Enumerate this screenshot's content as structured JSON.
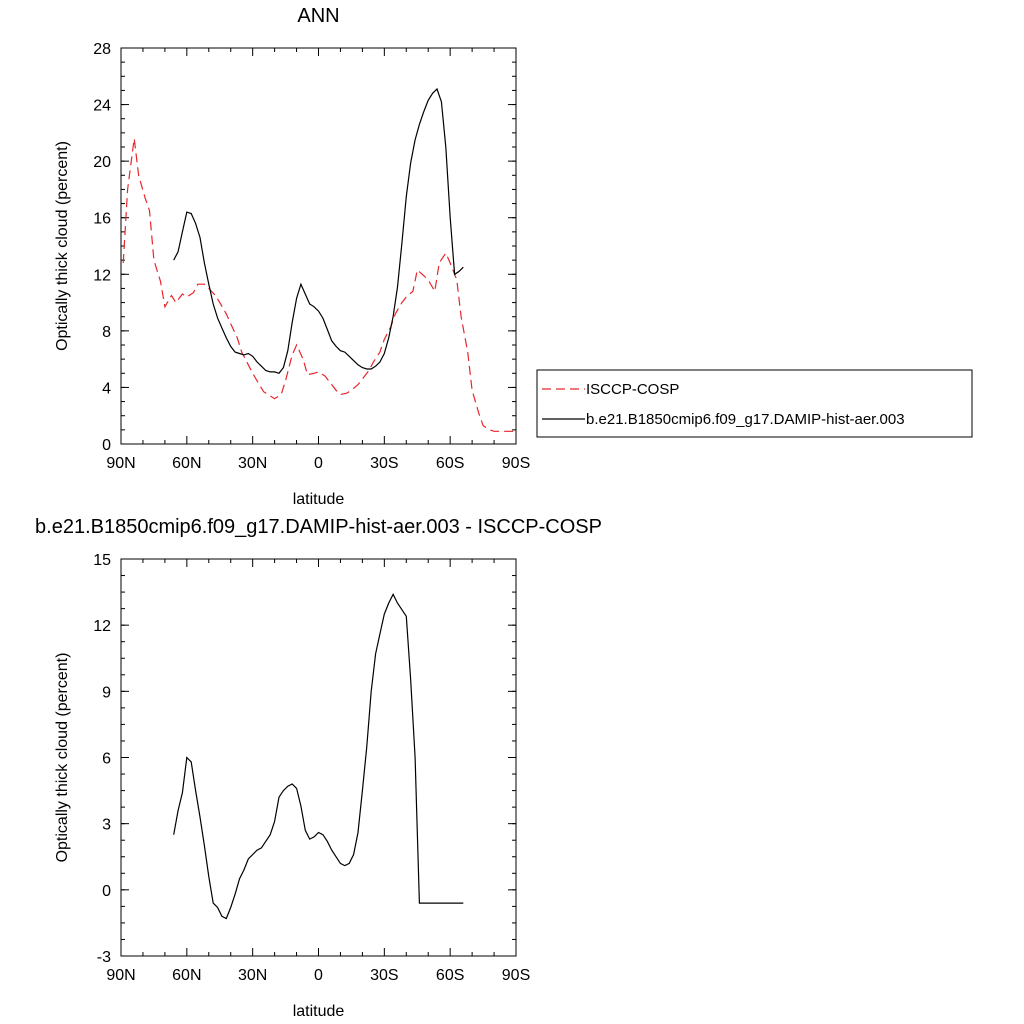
{
  "chart_data": [
    {
      "type": "line",
      "title": "ANN",
      "xlabel": "latitude",
      "ylabel": "Optically thick cloud (percent)",
      "xlim": [
        90,
        -90
      ],
      "ylim": [
        0,
        28
      ],
      "xticks": [
        90,
        60,
        30,
        0,
        -30,
        -60,
        -90
      ],
      "xtick_labels": [
        "90N",
        "60N",
        "30N",
        "0",
        "30S",
        "60S",
        "90S"
      ],
      "yticks": [
        0,
        4,
        8,
        12,
        16,
        20,
        24,
        28
      ],
      "ytick_labels": [
        "0",
        "4",
        "8",
        "12",
        "16",
        "20",
        "24",
        "28"
      ],
      "grid": false,
      "legend": "outside-right",
      "series": [
        {
          "name": "ISCCP-COSP",
          "color": "#e8262b",
          "dash": "dashed",
          "x": [
            89,
            87,
            84,
            82,
            79,
            77,
            75,
            72,
            70,
            67,
            65,
            62,
            60,
            57,
            55,
            52,
            50,
            47,
            45,
            42,
            40,
            37,
            35,
            32,
            30,
            27,
            25,
            22,
            20,
            17,
            15,
            12,
            10,
            7,
            5,
            2,
            0,
            -3,
            -5,
            -8,
            -10,
            -13,
            -15,
            -18,
            -20,
            -23,
            -25,
            -28,
            -30,
            -33,
            -35,
            -38,
            -40,
            -43,
            -45,
            -48,
            -50,
            -53,
            -55,
            -58,
            -60,
            -63,
            -65,
            -68,
            -70,
            -73,
            -75,
            -78,
            -80,
            -83,
            -85,
            -88,
            -89
          ],
          "y": [
            12.8,
            18.0,
            21.6,
            19.0,
            17.4,
            16.5,
            13.0,
            11.5,
            9.7,
            10.5,
            10.0,
            10.6,
            10.4,
            10.7,
            11.3,
            11.3,
            11.0,
            10.5,
            10.0,
            9.2,
            8.5,
            7.5,
            6.5,
            5.6,
            5.0,
            4.2,
            3.7,
            3.4,
            3.2,
            3.5,
            4.5,
            6.3,
            7.0,
            6.0,
            4.9,
            5.0,
            5.1,
            4.8,
            4.4,
            3.8,
            3.5,
            3.6,
            3.8,
            4.2,
            4.6,
            5.2,
            5.8,
            6.5,
            7.4,
            8.3,
            9.2,
            10.0,
            10.4,
            10.8,
            12.3,
            11.9,
            11.6,
            10.8,
            12.8,
            13.5,
            12.8,
            11.6,
            9.0,
            6.5,
            3.8,
            2.2,
            1.3,
            1.0,
            0.9,
            0.9,
            0.9,
            0.9,
            0.9
          ]
        },
        {
          "name": "b.e21.B1850cmip6.f09_g17.DAMIP-hist-aer.003",
          "color": "#000000",
          "dash": "solid",
          "x": [
            66,
            64,
            62,
            60,
            58,
            56,
            54,
            52,
            50,
            48,
            46,
            44,
            42,
            40,
            38,
            36,
            34,
            32,
            30,
            28,
            26,
            24,
            22,
            20,
            18,
            16,
            14,
            12,
            10,
            8,
            6,
            4,
            2,
            0,
            -2,
            -4,
            -6,
            -8,
            -10,
            -12,
            -14,
            -16,
            -18,
            -20,
            -22,
            -24,
            -26,
            -28,
            -30,
            -32,
            -34,
            -36,
            -38,
            -40,
            -42,
            -44,
            -46,
            -48,
            -50,
            -52,
            -54,
            -56,
            -58,
            -60,
            -62,
            -64,
            -66
          ],
          "y": [
            13.0,
            13.6,
            15.0,
            16.4,
            16.3,
            15.6,
            14.6,
            12.8,
            11.3,
            9.9,
            8.9,
            8.2,
            7.5,
            6.9,
            6.5,
            6.4,
            6.3,
            6.4,
            6.2,
            5.8,
            5.5,
            5.2,
            5.1,
            5.1,
            5.0,
            5.4,
            6.6,
            8.6,
            10.3,
            11.3,
            10.6,
            9.9,
            9.7,
            9.4,
            8.9,
            8.1,
            7.3,
            6.9,
            6.6,
            6.5,
            6.2,
            5.9,
            5.6,
            5.4,
            5.3,
            5.3,
            5.5,
            5.8,
            6.4,
            7.5,
            9.0,
            11.1,
            14.2,
            17.5,
            19.9,
            21.5,
            22.6,
            23.5,
            24.3,
            24.8,
            25.1,
            24.2,
            21.0,
            16.0,
            12.0,
            12.2,
            12.5
          ]
        }
      ]
    },
    {
      "type": "line",
      "title": "b.e21.B1850cmip6.f09_g17.DAMIP-hist-aer.003 - ISCCP-COSP",
      "xlabel": "latitude",
      "ylabel": "Optically thick cloud (percent)",
      "xlim": [
        90,
        -90
      ],
      "ylim": [
        -3,
        15
      ],
      "xticks": [
        90,
        60,
        30,
        0,
        -30,
        -60,
        -90
      ],
      "xtick_labels": [
        "90N",
        "60N",
        "30N",
        "0",
        "30S",
        "60S",
        "90S"
      ],
      "yticks": [
        -3,
        0,
        3,
        6,
        9,
        12,
        15
      ],
      "ytick_labels": [
        "-3",
        "0",
        "3",
        "6",
        "9",
        "12",
        "15"
      ],
      "grid": false,
      "series": [
        {
          "color": "#000000",
          "dash": "solid",
          "x": [
            66,
            64,
            62,
            60,
            58,
            56,
            54,
            52,
            50,
            48,
            46,
            44,
            42,
            40,
            38,
            36,
            34,
            32,
            30,
            28,
            26,
            24,
            22,
            20,
            18,
            16,
            14,
            12,
            10,
            8,
            6,
            4,
            2,
            0,
            -2,
            -4,
            -6,
            -8,
            -10,
            -12,
            -14,
            -16,
            -18,
            -20,
            -22,
            -24,
            -26,
            -28,
            -30,
            -32,
            -34,
            -36,
            -38,
            -40,
            -42,
            -44,
            -46,
            -48,
            -50,
            -52,
            -54,
            -56,
            -58,
            -60,
            -62,
            -64,
            -66
          ],
          "y": [
            2.5,
            3.6,
            4.4,
            6.0,
            5.8,
            4.5,
            3.3,
            2.0,
            0.6,
            -0.6,
            -0.8,
            -1.2,
            -1.3,
            -0.8,
            -0.2,
            0.5,
            0.9,
            1.4,
            1.6,
            1.8,
            1.9,
            2.2,
            2.5,
            3.1,
            4.2,
            4.5,
            4.7,
            4.8,
            4.6,
            3.8,
            2.7,
            2.3,
            2.4,
            2.6,
            2.5,
            2.2,
            1.8,
            1.5,
            1.2,
            1.1,
            1.2,
            1.6,
            2.6,
            4.5,
            6.5,
            9.0,
            10.7,
            11.6,
            12.5,
            13.0,
            13.4,
            13.0,
            12.7,
            12.4,
            9.5,
            6.0,
            -0.6,
            -0.6,
            -0.6,
            -0.6,
            -0.6,
            -0.6,
            -0.6,
            -0.6,
            -0.6,
            -0.6,
            -0.6
          ]
        }
      ]
    }
  ]
}
